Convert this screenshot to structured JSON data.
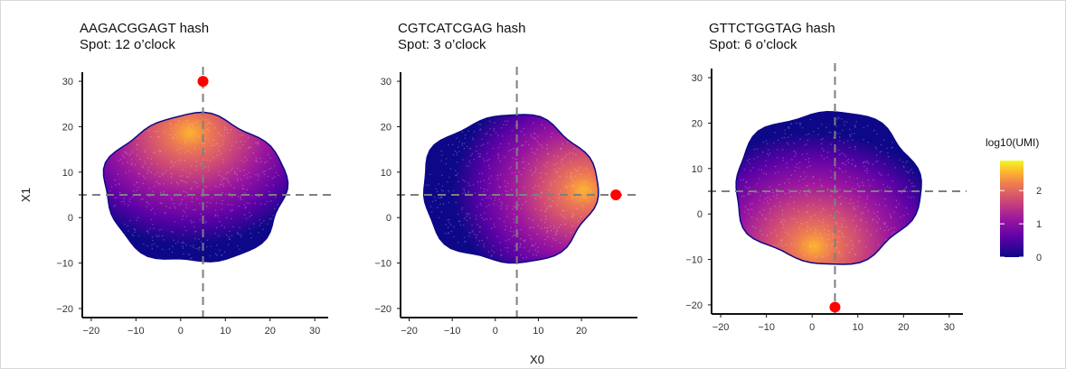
{
  "colors": {
    "low": "#0d0887",
    "mid_low": "#5c01a6",
    "mid": "#9c179e",
    "mid_high": "#cc4778",
    "high": "#ed7953",
    "top": "#fdb42f",
    "peak": "#f0f921",
    "spot": "#ff0000",
    "crosshair": "#7f7f7f"
  },
  "chart_data": [
    {
      "type": "scatter",
      "title": "AAGACGGAGT hash",
      "subtitle": "Spot: 12 o’clock",
      "ylabel": "X1",
      "xlim": [
        -22,
        33
      ],
      "ylim": [
        -22,
        32
      ],
      "x_ticks": [
        "−20",
        "−10",
        "0",
        "10",
        "20",
        "30"
      ],
      "x_tick_values": [
        -20,
        -10,
        0,
        10,
        20,
        30
      ],
      "y_ticks": [
        "−20",
        "−10",
        "0",
        "10",
        "20",
        "30"
      ],
      "y_tick_values": [
        -20,
        -10,
        0,
        10,
        20,
        30
      ],
      "crosshair": {
        "x": 5,
        "y": 5
      },
      "spot": {
        "x": 5,
        "y": 30
      },
      "cloud": {
        "x_range": [
          -17,
          23.5
        ],
        "y_range": [
          -10,
          22.5
        ]
      },
      "high_expression_center": {
        "x": 2,
        "y": 18
      }
    },
    {
      "type": "scatter",
      "title": "CGTCATCGAG hash",
      "subtitle": "Spot: 3 o’clock",
      "xlabel": "X0",
      "xlim": [
        -22,
        33
      ],
      "ylim": [
        -22,
        32
      ],
      "x_ticks": [
        "−20",
        "−10",
        "0",
        "10",
        "20"
      ],
      "x_tick_values": [
        -20,
        -10,
        0,
        10,
        20
      ],
      "y_ticks": [
        "−20",
        "−10",
        "0",
        "10",
        "20",
        "30"
      ],
      "y_tick_values": [
        -20,
        -10,
        0,
        10,
        20,
        30
      ],
      "crosshair": {
        "x": 5,
        "y": 5
      },
      "spot": {
        "x": 28,
        "y": 5
      },
      "cloud": {
        "x_range": [
          -17,
          23.5
        ],
        "y_range": [
          -10,
          22.5
        ]
      },
      "high_expression_center": {
        "x": 20,
        "y": 6
      }
    },
    {
      "type": "scatter",
      "title": "GTTCTGGTAG hash",
      "subtitle": "Spot: 6 o’clock",
      "xlim": [
        -22,
        33
      ],
      "ylim": [
        -22,
        32
      ],
      "x_ticks": [
        "−20",
        "−10",
        "0",
        "10",
        "20",
        "30"
      ],
      "x_tick_values": [
        -20,
        -10,
        0,
        10,
        20,
        30
      ],
      "y_ticks": [
        "−20",
        "−10",
        "0",
        "10",
        "20",
        "30"
      ],
      "y_tick_values": [
        -20,
        -10,
        0,
        10,
        20,
        30
      ],
      "crosshair": {
        "x": 5,
        "y": 5
      },
      "spot": {
        "x": 5,
        "y": -20.5
      },
      "cloud": {
        "x_range": [
          -17,
          23.5
        ],
        "y_range": [
          -11,
          22.5
        ]
      },
      "high_expression_center": {
        "x": 0,
        "y": -7
      }
    }
  ],
  "legend": {
    "title": "log10(UMI)",
    "ticks": [
      "0",
      "1",
      "2"
    ],
    "tick_values": [
      0,
      1,
      2
    ],
    "range": [
      0,
      2.9
    ]
  }
}
